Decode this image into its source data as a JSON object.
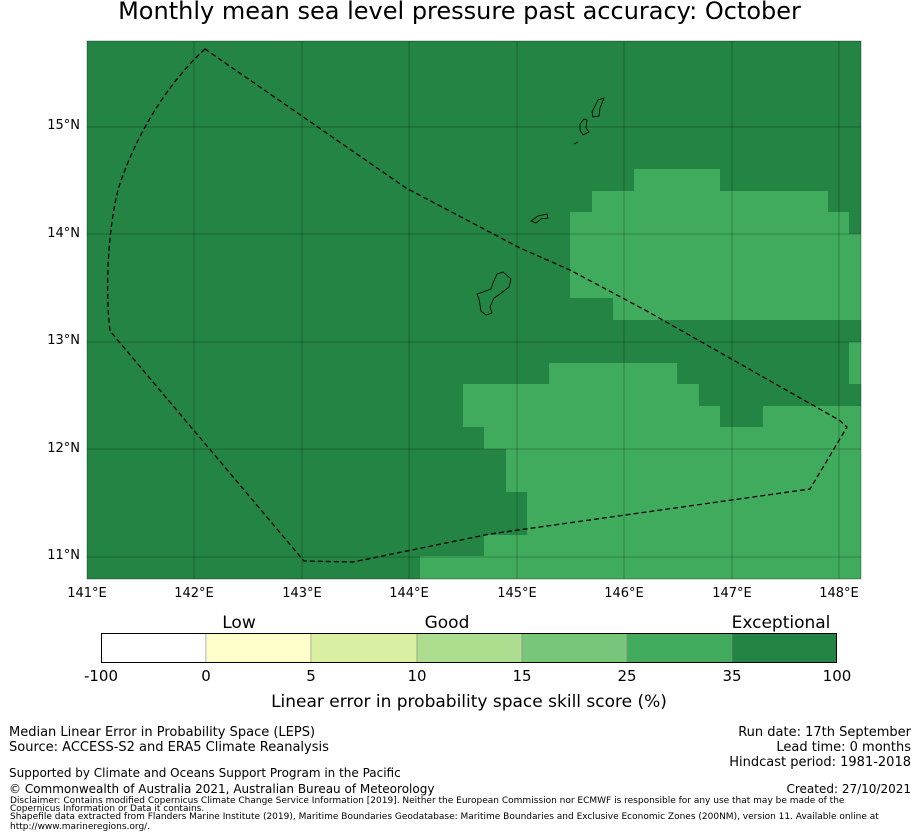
{
  "title": "Monthly mean sea level pressure past accuracy: October",
  "map": {
    "lon_ticks": [
      "141°E",
      "142°E",
      "143°E",
      "144°E",
      "145°E",
      "146°E",
      "147°E",
      "148°E"
    ],
    "lat_ticks": [
      "15°N",
      "14°N",
      "13°N",
      "12°N",
      "11°N"
    ],
    "colors": {
      "exceptional_dark": "#238443",
      "exceptional_light": "#41ab5d",
      "eez_outline": "#000000",
      "land_outline": "#000000"
    }
  },
  "colorbar": {
    "categories": [
      "Low",
      "Good",
      "Exceptional"
    ],
    "ticks": [
      "-100",
      "0",
      "5",
      "10",
      "15",
      "25",
      "35",
      "100"
    ],
    "colors": [
      "#ffffff",
      "#ffffcc",
      "#d9f0a3",
      "#addd8e",
      "#78c679",
      "#41ab5d",
      "#238443"
    ],
    "label": "Linear error in probability space skill score (%)"
  },
  "footer": {
    "method": "Median Linear Error in Probability Space (LEPS)",
    "source": "Source: ACCESS-S2 and ERA5 Climate Reanalysis",
    "support": "Supported by Climate and Oceans Support Program in the Pacific",
    "copyright": "© Commonwealth of Australia 2021, Australian Bureau of Meteorology",
    "disclaimer_1": "Disclaimer: Contains modified Copernicus Climate Change Service Information [2019]. Neither the European Commission nor ECMWF is responsible for any use that may be made of the",
    "disclaimer_2": "Copernicus Information or Data it contains.",
    "disclaimer_3": "Shapefile data extracted from Flanders Marine Institute (2019), Maritime Boundaries Geodatabase: Maritime Boundaries and Exclusive Economic Zones (200NM), version 11. Available online at",
    "disclaimer_4": "http://www.marineregions.org/.",
    "run_date": "Run date: 17th September",
    "lead_time": "Lead time: 0 months",
    "hindcast": "Hindcast period: 1981-2018",
    "created": "Created: 27/10/2021"
  }
}
